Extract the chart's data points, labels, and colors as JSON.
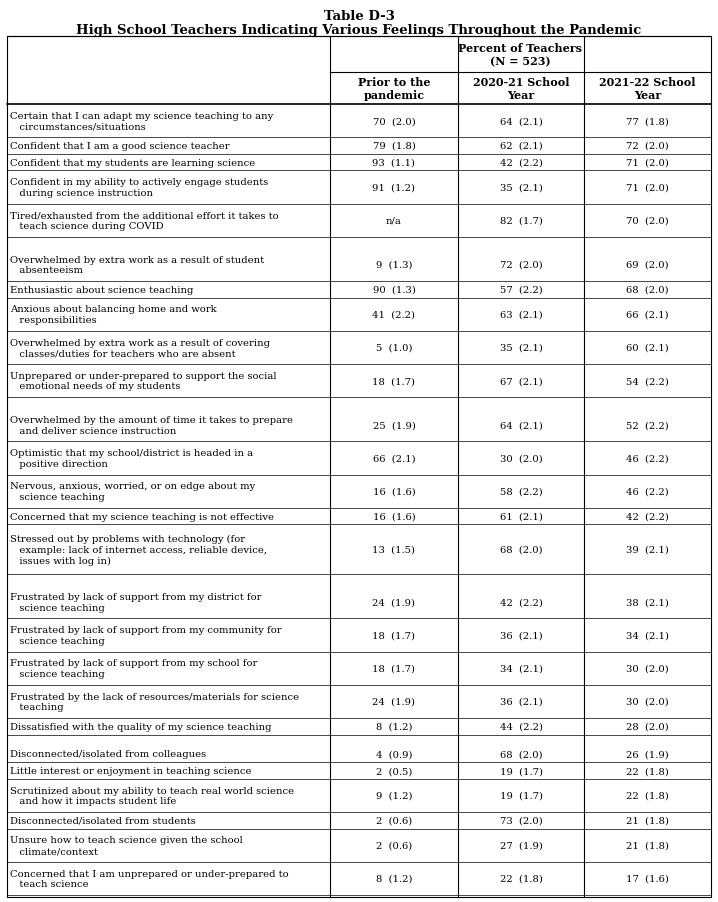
{
  "title_line1": "Table D-3",
  "title_line2": "High School Teachers Indicating Various Feelings Throughout the Pandemic",
  "rows": [
    {
      "label": "Certain that I can adapt my science teaching to any\n   circumstances/situations",
      "v1": "70  (2.0)",
      "v2": "64  (2.1)",
      "v3": "77  (1.8)",
      "blank": false,
      "nlines": 2
    },
    {
      "label": "Confident that I am a good science teacher",
      "v1": "79  (1.8)",
      "v2": "62  (2.1)",
      "v3": "72  (2.0)",
      "blank": false,
      "nlines": 1
    },
    {
      "label": "Confident that my students are learning science",
      "v1": "93  (1.1)",
      "v2": "42  (2.2)",
      "v3": "71  (2.0)",
      "blank": false,
      "nlines": 1
    },
    {
      "label": "Confident in my ability to actively engage students\n   during science instruction",
      "v1": "91  (1.2)",
      "v2": "35  (2.1)",
      "v3": "71  (2.0)",
      "blank": false,
      "nlines": 2
    },
    {
      "label": "Tired/exhausted from the additional effort it takes to\n   teach science during COVID",
      "v1": "n/a",
      "v2": "82  (1.7)",
      "v3": "70  (2.0)",
      "blank": false,
      "nlines": 2
    },
    {
      "label": "",
      "v1": "",
      "v2": "",
      "v3": "",
      "blank": true,
      "nlines": 0
    },
    {
      "label": "Overwhelmed by extra work as a result of student\n   absenteeism",
      "v1": "9  (1.3)",
      "v2": "72  (2.0)",
      "v3": "69  (2.0)",
      "blank": false,
      "nlines": 2
    },
    {
      "label": "Enthusiastic about science teaching",
      "v1": "90  (1.3)",
      "v2": "57  (2.2)",
      "v3": "68  (2.0)",
      "blank": false,
      "nlines": 1
    },
    {
      "label": "Anxious about balancing home and work\n   responsibilities",
      "v1": "41  (2.2)",
      "v2": "63  (2.1)",
      "v3": "66  (2.1)",
      "blank": false,
      "nlines": 2
    },
    {
      "label": "Overwhelmed by extra work as a result of covering\n   classes/duties for teachers who are absent",
      "v1": "5  (1.0)",
      "v2": "35  (2.1)",
      "v3": "60  (2.1)",
      "blank": false,
      "nlines": 2
    },
    {
      "label": "Unprepared or under-prepared to support the social\n   emotional needs of my students",
      "v1": "18  (1.7)",
      "v2": "67  (2.1)",
      "v3": "54  (2.2)",
      "blank": false,
      "nlines": 2
    },
    {
      "label": "",
      "v1": "",
      "v2": "",
      "v3": "",
      "blank": true,
      "nlines": 0
    },
    {
      "label": "Overwhelmed by the amount of time it takes to prepare\n   and deliver science instruction",
      "v1": "25  (1.9)",
      "v2": "64  (2.1)",
      "v3": "52  (2.2)",
      "blank": false,
      "nlines": 2
    },
    {
      "label": "Optimistic that my school/district is headed in a\n   positive direction",
      "v1": "66  (2.1)",
      "v2": "30  (2.0)",
      "v3": "46  (2.2)",
      "blank": false,
      "nlines": 2
    },
    {
      "label": "Nervous, anxious, worried, or on edge about my\n   science teaching",
      "v1": "16  (1.6)",
      "v2": "58  (2.2)",
      "v3": "46  (2.2)",
      "blank": false,
      "nlines": 2
    },
    {
      "label": "Concerned that my science teaching is not effective",
      "v1": "16  (1.6)",
      "v2": "61  (2.1)",
      "v3": "42  (2.2)",
      "blank": false,
      "nlines": 1
    },
    {
      "label": "Stressed out by problems with technology (for\n   example: lack of internet access, reliable device,\n   issues with log in)",
      "v1": "13  (1.5)",
      "v2": "68  (2.0)",
      "v3": "39  (2.1)",
      "blank": false,
      "nlines": 3
    },
    {
      "label": "",
      "v1": "",
      "v2": "",
      "v3": "",
      "blank": true,
      "nlines": 0
    },
    {
      "label": "Frustrated by lack of support from my district for\n   science teaching",
      "v1": "24  (1.9)",
      "v2": "42  (2.2)",
      "v3": "38  (2.1)",
      "blank": false,
      "nlines": 2
    },
    {
      "label": "Frustrated by lack of support from my community for\n   science teaching",
      "v1": "18  (1.7)",
      "v2": "36  (2.1)",
      "v3": "34  (2.1)",
      "blank": false,
      "nlines": 2
    },
    {
      "label": "Frustrated by lack of support from my school for\n   science teaching",
      "v1": "18  (1.7)",
      "v2": "34  (2.1)",
      "v3": "30  (2.0)",
      "blank": false,
      "nlines": 2
    },
    {
      "label": "Frustrated by the lack of resources/materials for science\n   teaching",
      "v1": "24  (1.9)",
      "v2": "36  (2.1)",
      "v3": "30  (2.0)",
      "blank": false,
      "nlines": 2
    },
    {
      "label": "Dissatisfied with the quality of my science teaching",
      "v1": "8  (1.2)",
      "v2": "44  (2.2)",
      "v3": "28  (2.0)",
      "blank": false,
      "nlines": 1
    },
    {
      "label": "",
      "v1": "",
      "v2": "",
      "v3": "",
      "blank": true,
      "nlines": 0
    },
    {
      "label": "Disconnected/isolated from colleagues",
      "v1": "4  (0.9)",
      "v2": "68  (2.0)",
      "v3": "26  (1.9)",
      "blank": false,
      "nlines": 1
    },
    {
      "label": "Little interest or enjoyment in teaching science",
      "v1": "2  (0.5)",
      "v2": "19  (1.7)",
      "v3": "22  (1.8)",
      "blank": false,
      "nlines": 1
    },
    {
      "label": "Scrutinized about my ability to teach real world science\n   and how it impacts student life",
      "v1": "9  (1.2)",
      "v2": "19  (1.7)",
      "v3": "22  (1.8)",
      "blank": false,
      "nlines": 2
    },
    {
      "label": "Disconnected/isolated from students",
      "v1": "2  (0.6)",
      "v2": "73  (2.0)",
      "v3": "21  (1.8)",
      "blank": false,
      "nlines": 1
    },
    {
      "label": "Unsure how to teach science given the school\n   climate/context",
      "v1": "2  (0.6)",
      "v2": "27  (1.9)",
      "v3": "21  (1.8)",
      "blank": false,
      "nlines": 2
    },
    {
      "label": "Concerned that I am unprepared or under-prepared to\n   teach science",
      "v1": "8  (1.2)",
      "v2": "22  (1.8)",
      "v3": "17  (1.6)",
      "blank": false,
      "nlines": 2
    }
  ],
  "bg_color": "#ffffff",
  "text_color": "#000000",
  "font_size": 7.2,
  "header_font_size": 8.0,
  "title_font_size": 9.5
}
